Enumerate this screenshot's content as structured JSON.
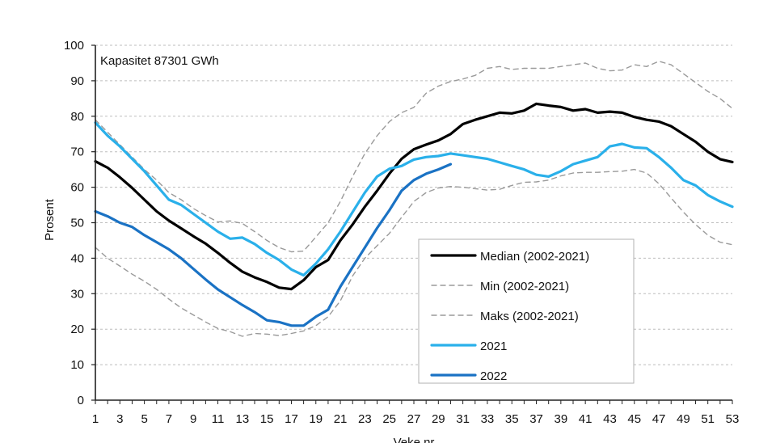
{
  "chart_data": {
    "type": "line",
    "title": "",
    "annotation": "Kapasitet 87301 GWh",
    "xlabel": "Veke nr",
    "ylabel": "Prosent",
    "xlim": [
      1,
      53
    ],
    "ylim": [
      0,
      100
    ],
    "yticks": [
      0,
      10,
      20,
      30,
      40,
      50,
      60,
      70,
      80,
      90,
      100
    ],
    "xticks": [
      1,
      3,
      5,
      7,
      9,
      11,
      13,
      15,
      17,
      19,
      21,
      23,
      25,
      27,
      29,
      31,
      33,
      35,
      37,
      39,
      41,
      43,
      45,
      47,
      49,
      51,
      53
    ],
    "grid": "horizontal-dotted",
    "legend_position": "bottom-center-right",
    "x": [
      1,
      2,
      3,
      4,
      5,
      6,
      7,
      8,
      9,
      10,
      11,
      12,
      13,
      14,
      15,
      16,
      17,
      18,
      19,
      20,
      21,
      22,
      23,
      24,
      25,
      26,
      27,
      28,
      29,
      30,
      31,
      32,
      33,
      34,
      35,
      36,
      37,
      38,
      39,
      40,
      41,
      42,
      43,
      44,
      45,
      46,
      47,
      48,
      49,
      50,
      51,
      52,
      53
    ],
    "series": [
      {
        "name": "Median (2002-2021)",
        "color": "#000000",
        "style": "solid",
        "values": [
          67.3,
          65.5,
          62.8,
          59.8,
          56.5,
          53.2,
          50.6,
          48.4,
          46.2,
          44.1,
          41.5,
          38.7,
          36.2,
          34.6,
          33.3,
          31.7,
          31.3,
          33.8,
          37.5,
          39.5,
          45.0,
          49.5,
          54.5,
          59.0,
          63.8,
          68.0,
          70.7,
          72.0,
          73.2,
          75.0,
          77.8,
          79.0,
          80.0,
          81.0,
          80.8,
          81.6,
          83.5,
          83.0,
          82.6,
          81.6,
          82.0,
          81.0,
          81.3,
          81.0,
          79.8,
          79.0,
          78.5,
          77.2,
          75.0,
          72.8,
          70.0,
          67.9,
          67.1
        ]
      },
      {
        "name": "Min (2002-2021)",
        "color": "#9a9a9a",
        "style": "dashed",
        "values": [
          43.0,
          40.0,
          37.8,
          35.5,
          33.5,
          31.2,
          28.5,
          26.0,
          24.0,
          22.0,
          20.2,
          19.3,
          18.0,
          18.8,
          18.6,
          18.2,
          18.8,
          19.5,
          21.0,
          23.5,
          28.0,
          35.0,
          40.0,
          43.5,
          47.0,
          51.5,
          56.0,
          58.5,
          59.8,
          60.2,
          60.0,
          59.6,
          59.2,
          59.4,
          60.5,
          61.4,
          61.5,
          62.0,
          63.2,
          64.0,
          64.2,
          64.2,
          64.4,
          64.5,
          65.0,
          64.0,
          61.0,
          57.0,
          53.0,
          49.5,
          46.5,
          44.5,
          43.8
        ]
      },
      {
        "name": "Maks (2002-2021)",
        "color": "#9a9a9a",
        "style": "dashed",
        "values": [
          79.0,
          75.5,
          72.0,
          68.5,
          65.0,
          62.0,
          58.5,
          56.5,
          54.0,
          52.0,
          50.2,
          50.5,
          49.8,
          47.5,
          45.0,
          43.0,
          41.8,
          42.0,
          46.0,
          50.0,
          56.0,
          63.0,
          69.5,
          74.5,
          78.5,
          81.0,
          82.5,
          86.5,
          88.5,
          89.8,
          90.5,
          91.5,
          93.5,
          94.0,
          93.2,
          93.5,
          93.5,
          93.5,
          94.0,
          94.5,
          95.0,
          93.5,
          92.8,
          93.0,
          94.5,
          94.0,
          95.5,
          94.5,
          92.0,
          89.5,
          87.0,
          85.0,
          82.2
        ]
      },
      {
        "name": "2021",
        "color": "#2ab0ea",
        "style": "solid",
        "values": [
          78.2,
          74.5,
          71.5,
          68.0,
          64.5,
          60.5,
          56.5,
          55.0,
          52.5,
          50.0,
          47.5,
          45.5,
          45.8,
          44.0,
          41.5,
          39.5,
          36.8,
          35.2,
          38.5,
          42.5,
          47.5,
          53.0,
          58.5,
          63.0,
          65.2,
          66.0,
          67.8,
          68.5,
          68.8,
          69.5,
          69.0,
          68.5,
          68.0,
          67.0,
          66.0,
          65.0,
          63.5,
          63.0,
          64.5,
          66.5,
          67.5,
          68.5,
          71.5,
          72.2,
          71.2,
          71.0,
          68.5,
          65.5,
          62.0,
          60.5,
          57.8,
          56.0,
          54.5
        ]
      },
      {
        "name": "2022",
        "color": "#1a72c4",
        "style": "solid",
        "values": [
          53.2,
          51.8,
          50.0,
          48.8,
          46.5,
          44.5,
          42.5,
          40.0,
          37.0,
          34.0,
          31.2,
          29.0,
          26.8,
          24.8,
          22.5,
          22.0,
          21.0,
          21.0,
          23.5,
          25.5,
          32.0,
          37.5,
          43.0,
          48.5,
          53.5,
          59.0,
          62.0,
          63.8,
          65.0,
          66.5,
          null,
          null,
          null,
          null,
          null,
          null,
          null,
          null,
          null,
          null,
          null,
          null,
          null,
          null,
          null,
          null,
          null,
          null,
          null,
          null,
          null,
          null,
          null
        ]
      }
    ]
  }
}
